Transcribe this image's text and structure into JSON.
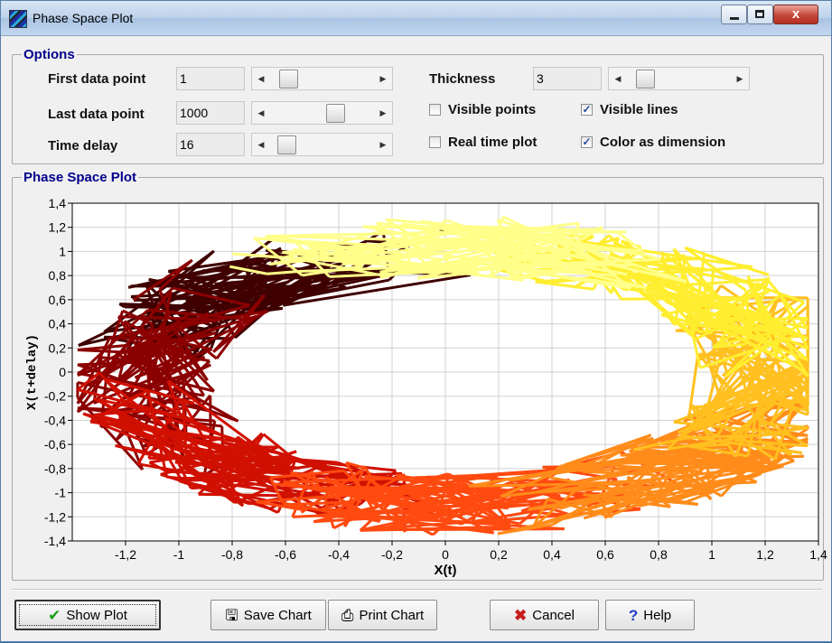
{
  "window": {
    "title": "Phase Space Plot",
    "close_glyph": "x"
  },
  "options": {
    "legend": "Options",
    "first_data_point": {
      "label": "First data point",
      "value": "1"
    },
    "last_data_point": {
      "label": "Last data point",
      "value": "1000"
    },
    "time_delay": {
      "label": "Time delay",
      "value": "16"
    },
    "thickness": {
      "label": "Thickness",
      "value": "3"
    },
    "visible_points": {
      "label": "Visible points",
      "checked": false
    },
    "visible_lines": {
      "label": "Visible lines",
      "checked": true
    },
    "real_time_plot": {
      "label": "Real time plot",
      "checked": false
    },
    "color_as_dimension": {
      "label": "Color as dimension",
      "checked": true
    },
    "slider_levels": {
      "first": 0.1,
      "last": 0.65,
      "delay": 0.08,
      "thickness": 0.1
    }
  },
  "plot_group": {
    "legend": "Phase Space Plot"
  },
  "chart_data": {
    "type": "line",
    "xlabel": "X(t)",
    "ylabel": "X(t+delay)",
    "xlim": [
      -1.4,
      1.4
    ],
    "ylim": [
      -1.4,
      1.4
    ],
    "xticks": [
      "-1,2",
      "-1",
      "-0,8",
      "-0,6",
      "-0,4",
      "-0,2",
      "0",
      "0,2",
      "0,4",
      "0,6",
      "0,8",
      "1",
      "1,2",
      "1,4"
    ],
    "yticks": [
      "1,4",
      "1,2",
      "1",
      "0,8",
      "0,6",
      "0,4",
      "0,2",
      "0",
      "-0,2",
      "-0,4",
      "-0,6",
      "-0,8",
      "-1",
      "-1,2",
      "-1,4"
    ],
    "grid": true,
    "colormap": [
      "#3f0000",
      "#8b0000",
      "#d01000",
      "#ff4a10",
      "#ff8c1a",
      "#ffc020",
      "#ffee30",
      "#ffff8a"
    ],
    "series": [
      {
        "points_approx": "1000 points tracing a noisy ring (phase-space attractor), radius ~1.0, colored by index"
      }
    ]
  },
  "buttons": {
    "show_plot": "Show Plot",
    "save_chart": "Save Chart",
    "print_chart": "Print Chart",
    "cancel": "Cancel",
    "help": "Help"
  }
}
